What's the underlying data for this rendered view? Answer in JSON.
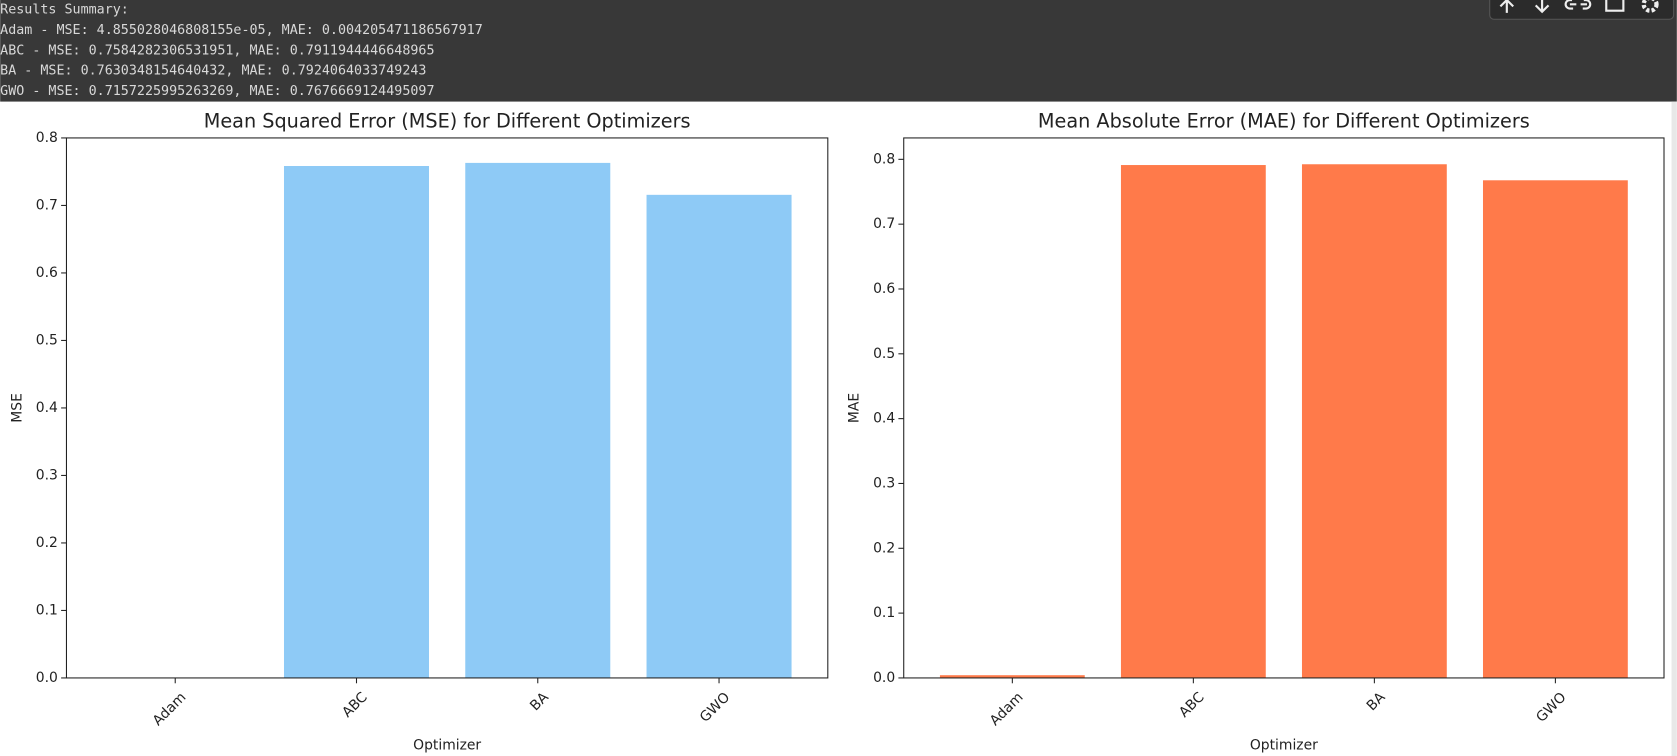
{
  "console": {
    "lines": [
      "Results Summary:",
      "Adam - MSE: 4.855028046808155e-05, MAE: 0.004205471186567917",
      "ABC - MSE: 0.7584282306531951, MAE: 0.7911944446648965",
      "BA - MSE: 0.7630348154640432, MAE: 0.7924064033749243",
      "GWO - MSE: 0.7157225995263269, MAE: 0.7676669124495097"
    ]
  },
  "chart_data": [
    {
      "type": "bar",
      "title": "Mean Squared Error (MSE) for Different Optimizers",
      "x_label": "Optimizer",
      "y_label": "MSE",
      "categories": [
        "Adam",
        "ABC",
        "BA",
        "GWO"
      ],
      "values": [
        4.855028046808155e-05,
        0.7584282306531951,
        0.7630348154640432,
        0.7157225995263269
      ],
      "color": "#8ecaf6",
      "ylim": [
        0,
        0.8
      ],
      "yticks": [
        {
          "value": 0,
          "label": "0.0"
        },
        0.1,
        0.2,
        0.3,
        0.4,
        0.5,
        0.6,
        0.7,
        0.8
      ],
      "grid": false
    },
    {
      "type": "bar",
      "title": "Mean Absolute Error (MAE) for Different Optimizers",
      "x_label": "Optimizer",
      "y_label": "MAE",
      "categories": [
        "Adam",
        "ABC",
        "BA",
        "GWO"
      ],
      "values": [
        0.004205471186567917,
        0.7911944446648965,
        0.7924064033749243,
        0.7676669124495097
      ],
      "color": "#ff7a4a",
      "ylim": [
        0,
        0.833
      ],
      "yticks": [
        {
          "value": 0,
          "label": "0.0"
        },
        0.1,
        0.2,
        0.3,
        0.4,
        0.5,
        0.6,
        0.7,
        0.8
      ],
      "grid": false
    }
  ]
}
